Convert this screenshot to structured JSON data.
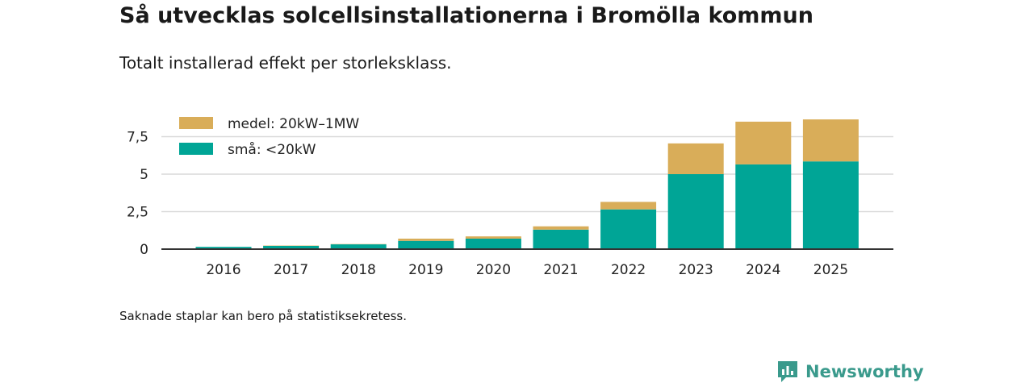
{
  "title": "Så utvecklas solcellsinstallationerna i Bromölla kommun",
  "subtitle": "Totalt installerad effekt per storleksklass.",
  "note": "Saknade staplar kan bero på statistiksekretess.",
  "brand": {
    "name": "Newsworthy",
    "icon": "newsworthy-logo-icon",
    "color": "#3a9a8c"
  },
  "colors": {
    "sma": "#00a596",
    "medel": "#d9ad59"
  },
  "chart_data": {
    "type": "bar",
    "stacked": true,
    "title": "Så utvecklas solcellsinstallationerna i Bromölla kommun",
    "subtitle": "Totalt installerad effekt per storleksklass.",
    "xlabel": "",
    "ylabel": "",
    "ylim": [
      0,
      9
    ],
    "yticks": [
      0,
      2.5,
      5,
      7.5
    ],
    "ytick_labels": [
      "0",
      "2,5",
      "5",
      "7,5"
    ],
    "grid": true,
    "legend_position": "top-left",
    "categories": [
      "2016",
      "2017",
      "2018",
      "2019",
      "2020",
      "2021",
      "2022",
      "2023",
      "2024",
      "2025"
    ],
    "series": [
      {
        "name": "små: <20kW",
        "key": "sma",
        "values": [
          0.15,
          0.22,
          0.32,
          0.55,
          0.7,
          1.3,
          2.65,
          5.0,
          5.65,
          5.85
        ]
      },
      {
        "name": "medel: 20kW–1MW",
        "key": "medel",
        "values": [
          0,
          0.02,
          0.02,
          0.15,
          0.15,
          0.22,
          0.5,
          2.05,
          2.85,
          2.8
        ]
      }
    ],
    "legend": [
      "medel: 20kW–1MW",
      "små: <20kW"
    ]
  }
}
